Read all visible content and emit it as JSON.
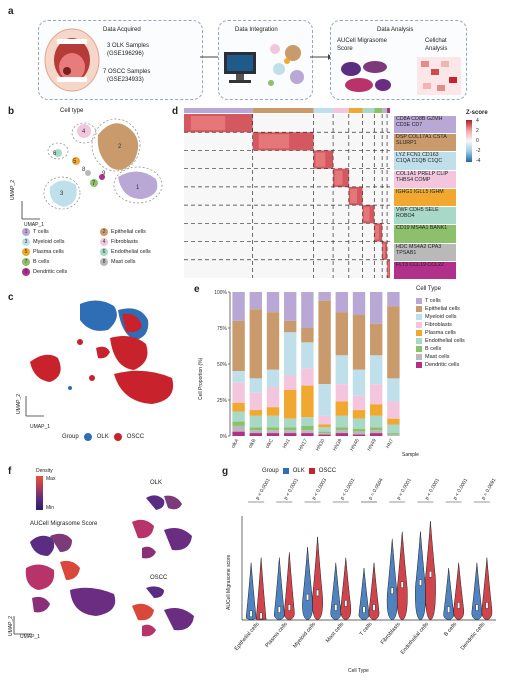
{
  "panel_labels": {
    "a": "a",
    "b": "b",
    "c": "c",
    "d": "d",
    "e": "e",
    "f": "f",
    "g": "g"
  },
  "panel_a": {
    "acquired_title": "Data Acquired",
    "olk_line1": "3 OLK Samples",
    "olk_line2": "(GSE196296)",
    "oscc_line1": "7 OSCC Samples",
    "oscc_line2": "(GSE234933)",
    "integration_title": "Data Integration",
    "analysis_title": "Data Analysis",
    "aucell_line1": "AUCell Migrasome",
    "aucell_line2": "Score",
    "cellchat_line1": "Cellchat",
    "cellchat_line2": "Analysis"
  },
  "panel_b": {
    "title": "Cell type",
    "axis_y": "UMAP_2",
    "axis_x": "UMAP_1",
    "legend": [
      {
        "num": "1",
        "label": "T cells",
        "color": "#b9a8d6"
      },
      {
        "num": "2",
        "label": "Epithelial cells",
        "color": "#c99a6b"
      },
      {
        "num": "3",
        "label": "Myeloid cells",
        "color": "#bfe0ea"
      },
      {
        "num": "4",
        "label": "Fibroblasts",
        "color": "#f3c6dd"
      },
      {
        "num": "5",
        "label": "Plasma cells",
        "color": "#f0a830"
      },
      {
        "num": "6",
        "label": "Endothelial cells",
        "color": "#a8d8c8"
      },
      {
        "num": "7",
        "label": "B cells",
        "color": "#8cc06a"
      },
      {
        "num": "8",
        "label": "Mast cells",
        "color": "#b9b9b9"
      },
      {
        "num": "9",
        "label": "Dendritic cells",
        "color": "#b0308a"
      }
    ]
  },
  "panel_c": {
    "axis_y": "UMAP_2",
    "axis_x": "UMAP_1",
    "group_label": "Group",
    "groups": [
      {
        "label": "OLK",
        "color": "#2f6db5"
      },
      {
        "label": "OSCC",
        "color": "#c8232c"
      }
    ]
  },
  "panel_d": {
    "zscore_title": "Z-score",
    "zscore_ticks": [
      "4",
      "2",
      "0",
      "-2",
      "-4"
    ],
    "gene_labels": [
      {
        "text": "CD8A CD8B GZMH CD3E CD7",
        "color": "#b9a8d6"
      },
      {
        "text": "DSP COL17A1 CSTA SLURP1",
        "color": "#c99a6b"
      },
      {
        "text": "LYZ FCN1 CD163 C1QA C1QB C1QC",
        "color": "#bfe0ea"
      },
      {
        "text": "COL1A1 PRELP CLIP THBS4 COMP",
        "color": "#f3c6dd"
      },
      {
        "text": "IGHG1 IGLL5 IGHM",
        "color": "#f0a830"
      },
      {
        "text": "VWF CDH5 SELE ROBO4",
        "color": "#a8d8c8"
      },
      {
        "text": "CD19 MS4A1 BANK1",
        "color": "#8cc06a"
      },
      {
        "text": "HDC MS4A2 CPA3 TPSAB1",
        "color": "#b9b9b9"
      },
      {
        "text": "FLT3 CCL19 CCL22",
        "color": "#b0308a"
      }
    ]
  },
  "panel_e": {
    "ylabel": "Cell Proportion (%)",
    "xlabel": "Sample",
    "legend_title": "Cell Type"
  },
  "panel_f": {
    "density_title": "Density",
    "density_max": "Max",
    "density_min": "Min",
    "main_title": "AUCell Migrasome Score",
    "olk_title": "OLK",
    "oscc_title": "OSCC",
    "axis_y": "UMAP_2",
    "axis_x": "UMAP_1"
  },
  "panel_g": {
    "group_label": "Group",
    "ylabel": "AUCell Migrasome score",
    "xlabel": "Cell Type"
  },
  "chart_data": [
    {
      "type": "bar",
      "stacked": true,
      "categories": [
        "olkA",
        "olkB",
        "olkC",
        "HN1",
        "HN17",
        "HN30",
        "HN39",
        "HN46",
        "HN49",
        "HN7"
      ],
      "ylim": [
        0,
        100
      ],
      "yticks": [
        "0%",
        "25%",
        "50%",
        "75%",
        "100%"
      ],
      "series": [
        {
          "name": "T cells",
          "color": "#b9a8d6",
          "values": [
            20,
            12,
            14,
            20,
            25,
            6,
            14,
            16,
            22,
            10
          ]
        },
        {
          "name": "Epithelial cells",
          "color": "#c99a6b",
          "values": [
            35,
            48,
            40,
            8,
            10,
            58,
            30,
            38,
            22,
            50
          ]
        },
        {
          "name": "Myeloid cells",
          "color": "#bfe0ea",
          "values": [
            8,
            10,
            12,
            30,
            18,
            22,
            20,
            18,
            20,
            16
          ]
        },
        {
          "name": "Fibroblasts",
          "color": "#f3c6dd",
          "values": [
            14,
            12,
            14,
            10,
            12,
            6,
            12,
            10,
            14,
            12
          ]
        },
        {
          "name": "Plasma cells",
          "color": "#f0a830",
          "values": [
            6,
            4,
            6,
            20,
            22,
            2,
            10,
            6,
            8,
            4
          ]
        },
        {
          "name": "Endothelial cells",
          "color": "#a8d8c8",
          "values": [
            7,
            8,
            8,
            6,
            6,
            3,
            8,
            7,
            8,
            6
          ]
        },
        {
          "name": "B cells",
          "color": "#8cc06a",
          "values": [
            3,
            2,
            2,
            2,
            3,
            1,
            2,
            2,
            2,
            1
          ]
        },
        {
          "name": "Mast cells",
          "color": "#b9b9b9",
          "values": [
            4,
            2,
            2,
            2,
            2,
            1,
            2,
            2,
            2,
            1
          ]
        },
        {
          "name": "Dendritic cells",
          "color": "#b0308a",
          "values": [
            3,
            2,
            2,
            2,
            2,
            1,
            2,
            1,
            2,
            0
          ]
        }
      ]
    },
    {
      "type": "violin",
      "categories": [
        "Epithelial cells",
        "Plasma cells",
        "Myeloid cells",
        "Mast cells",
        "T cells",
        "Fibroblasts",
        "Endothelial cells",
        "B cells",
        "Dendritic cells"
      ],
      "pvalues": [
        "p < 0.0001",
        "p < 0.0001",
        "p < 0.0003",
        "p < 0.0001",
        "p = 0.0564",
        "p < 0.0001",
        "p < 0.0001",
        "p < 0.0001",
        "p = 0.0691"
      ],
      "ylim": [
        0,
        1
      ],
      "series": [
        {
          "name": "OLK",
          "color": "#2f6db5",
          "medians": [
            0.06,
            0.1,
            0.22,
            0.12,
            0.1,
            0.28,
            0.36,
            0.1,
            0.12
          ],
          "maxima": [
            0.55,
            0.6,
            0.7,
            0.55,
            0.5,
            0.78,
            0.85,
            0.5,
            0.55
          ]
        },
        {
          "name": "OSCC",
          "color": "#c8232c",
          "medians": [
            0.04,
            0.12,
            0.26,
            0.16,
            0.12,
            0.34,
            0.44,
            0.14,
            0.14
          ],
          "maxima": [
            0.6,
            0.65,
            0.8,
            0.6,
            0.55,
            0.85,
            0.95,
            0.55,
            0.6
          ]
        }
      ]
    }
  ]
}
